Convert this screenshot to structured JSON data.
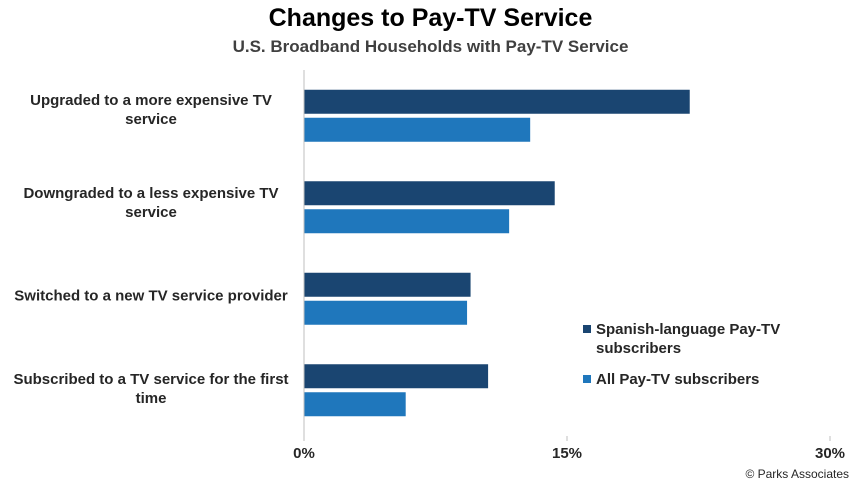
{
  "chart_data": {
    "type": "bar",
    "orientation": "horizontal",
    "title": "Changes to Pay-TV Service",
    "subtitle": "U.S. Broadband Households with Pay-TV Service",
    "categories": [
      "Upgraded to a more expensive TV service",
      "Downgraded to a less expensive TV service",
      "Switched to a new TV service provider",
      "Subscribed to a TV service for the first time"
    ],
    "series": [
      {
        "name": "Spanish-language Pay-TV subscribers",
        "color": "#1a4571",
        "values": [
          22,
          14.3,
          9.5,
          10.5
        ]
      },
      {
        "name": "All Pay-TV subscribers",
        "color": "#1f77bc",
        "values": [
          12.9,
          11.7,
          9.3,
          5.8
        ]
      }
    ],
    "xlim": [
      0,
      30
    ],
    "xticks": [
      "0%",
      "15%",
      "30%"
    ],
    "xtick_values": [
      0,
      15,
      30
    ],
    "xlabel": "",
    "ylabel": "",
    "grid": false,
    "legend_position": "right"
  },
  "credit": "© Parks Associates"
}
